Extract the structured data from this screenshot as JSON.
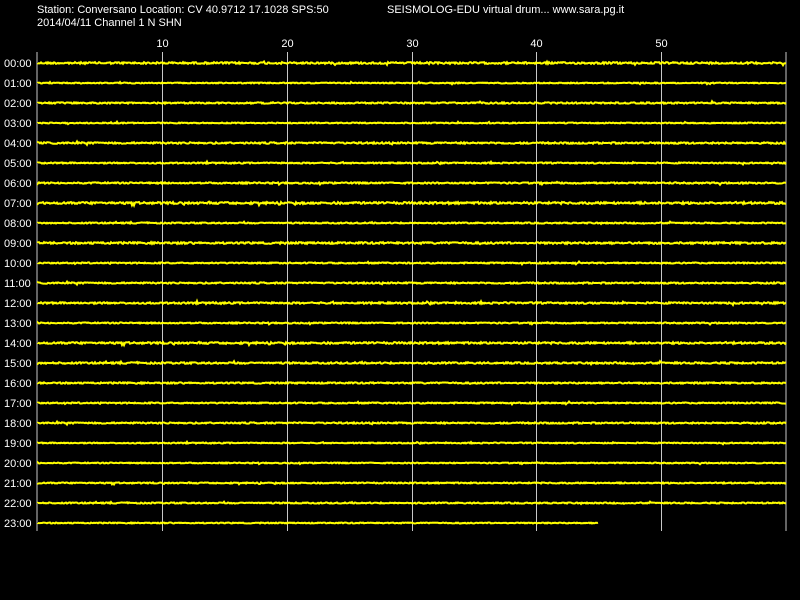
{
  "header": {
    "station_line": "Station: Conversano Location: CV 40.9712 17.1028 SPS:50",
    "program_line": "SEISMOLOG-EDU virtual drum... www.sara.pg.it",
    "date_channel_line": "2014/04/11  Channel 1 N SHN"
  },
  "colors": {
    "background": "#000000",
    "trace": "#ffff00",
    "grid": "#c8c8c8",
    "text": "#ffffff"
  },
  "chart_data": {
    "type": "line",
    "title": "",
    "xlabel": "",
    "ylabel": "",
    "x_range_minutes": [
      0,
      60
    ],
    "x_ticks": [
      10,
      20,
      30,
      40,
      50
    ],
    "grid": true,
    "rows": [
      "00:00",
      "01:00",
      "02:00",
      "03:00",
      "04:00",
      "05:00",
      "06:00",
      "07:00",
      "08:00",
      "09:00",
      "10:00",
      "11:00",
      "12:00",
      "13:00",
      "14:00",
      "15:00",
      "16:00",
      "17:00",
      "18:00",
      "19:00",
      "20:00",
      "21:00",
      "22:00",
      "23:00"
    ],
    "row_trace_end_minutes": [
      60,
      60,
      60,
      60,
      60,
      60,
      60,
      60,
      60,
      60,
      60,
      60,
      60,
      60,
      60,
      60,
      60,
      60,
      60,
      60,
      60,
      60,
      60,
      45
    ],
    "row_noise_level": [
      0.9,
      0.5,
      0.7,
      0.5,
      0.8,
      0.6,
      0.7,
      1.0,
      0.6,
      0.9,
      0.6,
      0.7,
      0.8,
      0.6,
      0.9,
      0.8,
      0.7,
      0.6,
      0.7,
      0.5,
      0.5,
      0.6,
      0.6,
      0.5
    ]
  }
}
